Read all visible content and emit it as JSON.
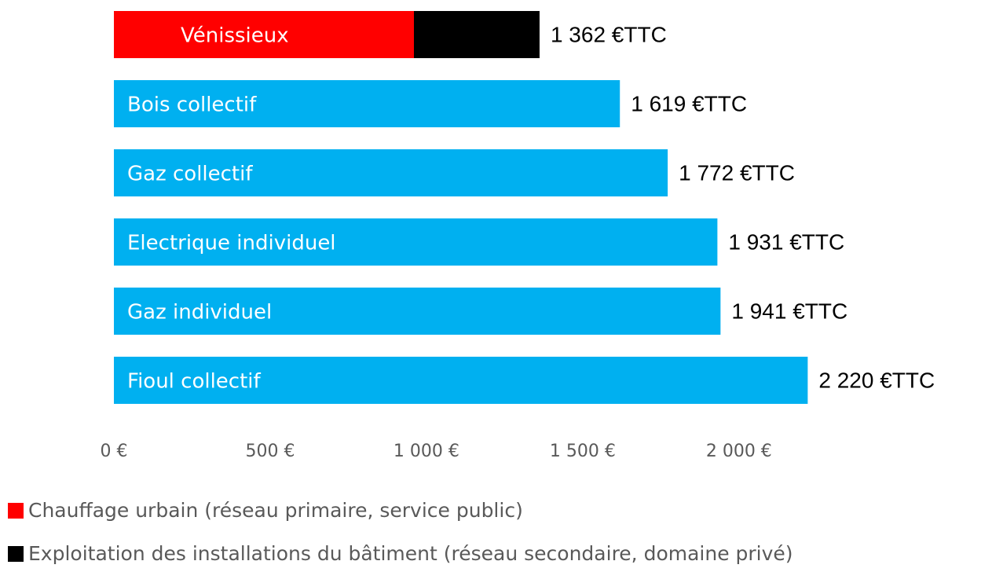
{
  "chart_data": {
    "type": "stacked-barh",
    "categories": [
      "Vénissieux",
      "Bois collectif",
      "Gaz collectif",
      "Electrique individuel",
      "Gaz individuel",
      "Fioul collectif"
    ],
    "series": [
      {
        "name": "Chauffage urbain (réseau primaire, service public)",
        "color": "#ff0000",
        "values": [
          960,
          null,
          null,
          null,
          null,
          null
        ]
      },
      {
        "name": "Exploitation des installations du bâtiment (réseau secondaire, domaine privé)",
        "color": "#000000",
        "values": [
          402,
          null,
          null,
          null,
          null,
          null
        ]
      },
      {
        "color": "#00b0f0",
        "values": [
          null,
          1619,
          1772,
          1931,
          1941,
          2220
        ]
      }
    ],
    "totals": [
      1362,
      1619,
      1772,
      1931,
      1941,
      2220
    ],
    "value_labels": [
      "1 362 €TTC",
      "1 619 €TTC",
      "1 772 €TTC",
      "1 931 €TTC",
      "1 941 €TTC",
      "2 220 €TTC"
    ],
    "xlim": [
      0,
      2400
    ],
    "xticks": [
      {
        "value": 0,
        "label": "0 €"
      },
      {
        "value": 500,
        "label": "500 €"
      },
      {
        "value": 1000,
        "label": "1 000 €"
      },
      {
        "value": 1500,
        "label": "1 500 €"
      },
      {
        "value": 2000,
        "label": "2 000 €"
      }
    ],
    "grid": false
  }
}
